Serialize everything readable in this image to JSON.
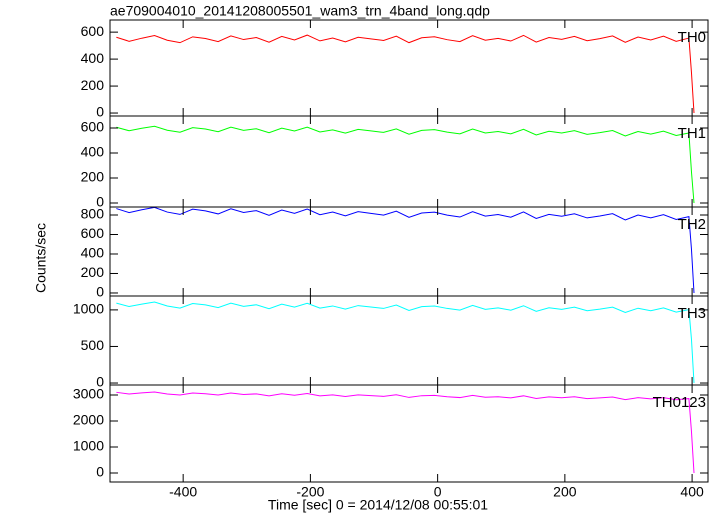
{
  "figure": {
    "title": "ae709004010_20141208005501_wam3_trn_4band_long.qdp",
    "xlabel": "Time [sec] 0 = 2014/12/08 00:55:01",
    "ylabel": "Counts/sec",
    "xlim": [
      -515,
      425
    ],
    "xticks": [
      -400,
      -200,
      0,
      200,
      400
    ],
    "x": [
      -505,
      -485,
      -465,
      -445,
      -425,
      -405,
      -385,
      -365,
      -345,
      -325,
      -305,
      -285,
      -265,
      -245,
      -225,
      -205,
      -185,
      -165,
      -145,
      -125,
      -105,
      -85,
      -65,
      -45,
      -25,
      -5,
      15,
      35,
      55,
      75,
      95,
      115,
      135,
      155,
      175,
      195,
      215,
      235,
      255,
      275,
      295,
      315,
      335,
      355,
      375,
      395,
      399,
      403
    ]
  },
  "chart_data": [
    {
      "type": "line",
      "label": "TH0",
      "color": "#ff0000",
      "ylim": [
        -22,
        690
      ],
      "yticks": [
        0,
        200,
        400,
        600
      ],
      "values": [
        562,
        532,
        555,
        575,
        540,
        522,
        565,
        553,
        530,
        572,
        545,
        560,
        525,
        568,
        542,
        578,
        535,
        556,
        528,
        562,
        550,
        538,
        570,
        522,
        558,
        566,
        544,
        530,
        574,
        540,
        554,
        534,
        576,
        526,
        560,
        546,
        568,
        536,
        552,
        572,
        524,
        564,
        542,
        570,
        532,
        556,
        300,
        0
      ]
    },
    {
      "type": "line",
      "label": "TH1",
      "color": "#00ff00",
      "ylim": [
        -32,
        696
      ],
      "yticks": [
        0,
        200,
        400,
        600
      ],
      "values": [
        606,
        578,
        598,
        614,
        582,
        566,
        603,
        592,
        570,
        607,
        581,
        594,
        562,
        599,
        576,
        607,
        568,
        585,
        559,
        589,
        577,
        565,
        593,
        550,
        581,
        587,
        567,
        553,
        592,
        560,
        572,
        553,
        590,
        544,
        574,
        560,
        579,
        549,
        563,
        580,
        536,
        572,
        551,
        575,
        540,
        560,
        250,
        0
      ]
    },
    {
      "type": "line",
      "label": "TH2",
      "color": "#0000ff",
      "ylim": [
        -31,
        882
      ],
      "yticks": [
        0,
        200,
        400,
        600,
        800
      ],
      "values": [
        866,
        825,
        854,
        878,
        830,
        806,
        860,
        842,
        811,
        864,
        826,
        845,
        797,
        851,
        817,
        861,
        803,
        830,
        791,
        834,
        817,
        799,
        839,
        776,
        820,
        829,
        799,
        779,
        834,
        789,
        805,
        777,
        831,
        764,
        806,
        787,
        813,
        770,
        790,
        814,
        749,
        800,
        770,
        804,
        754,
        783,
        450,
        0
      ]
    },
    {
      "type": "line",
      "label": "TH3",
      "color": "#00ffff",
      "ylim": [
        -27,
        1190
      ],
      "yticks": [
        0,
        500,
        1000
      ],
      "values": [
        1093,
        1046,
        1079,
        1108,
        1053,
        1024,
        1087,
        1068,
        1031,
        1092,
        1049,
        1070,
        1016,
        1079,
        1038,
        1090,
        1024,
        1054,
        1010,
        1059,
        1039,
        1020,
        1066,
        992,
        1044,
        1054,
        1020,
        997,
        1061,
        1008,
        1028,
        996,
        1057,
        980,
        1029,
        1007,
        1038,
        988,
        1010,
        1038,
        965,
        1023,
        988,
        1028,
        970,
        1004,
        600,
        0
      ]
    },
    {
      "type": "line",
      "label": "TH0123",
      "color": "#ff00ff",
      "ylim": [
        -346,
        3385
      ],
      "yticks": [
        0,
        1000,
        2000,
        3000
      ],
      "values": [
        3104,
        3039,
        3080,
        3115,
        3040,
        2999,
        3079,
        3050,
        2999,
        3078,
        3019,
        3044,
        2969,
        3050,
        2993,
        3060,
        2968,
        3005,
        2944,
        3007,
        2978,
        2949,
        3008,
        2907,
        2974,
        2985,
        2935,
        2902,
        2985,
        2912,
        2935,
        2890,
        2969,
        2864,
        2927,
        2894,
        2932,
        2863,
        2890,
        2925,
        2824,
        2899,
        2850,
        2901,
        2820,
        2862,
        1600,
        0
      ]
    }
  ]
}
